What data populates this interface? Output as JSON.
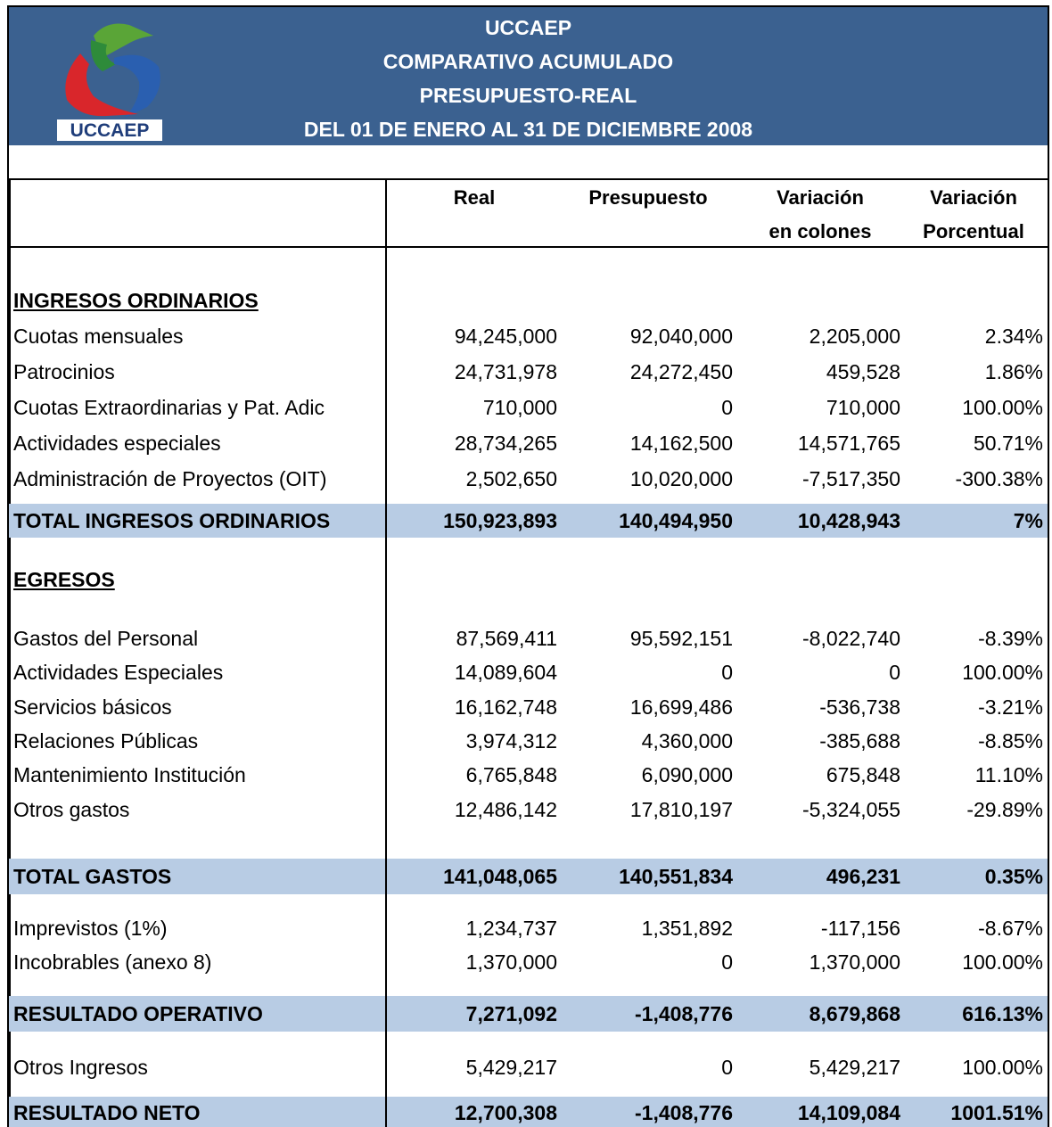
{
  "header": {
    "logo_text": "UCCAEP",
    "title_lines": [
      "UCCAEP",
      "COMPARATIVO ACUMULADO",
      "PRESUPUESTO-REAL",
      "DEL 01 DE ENERO AL 31 DE DICIEMBRE 2008"
    ]
  },
  "table": {
    "columns": [
      [
        "Real"
      ],
      [
        "Presupuesto"
      ],
      [
        "Variación",
        "en colones"
      ],
      [
        "Variación",
        "Porcentual"
      ]
    ],
    "rows": [
      {
        "kind": "section",
        "label": "INGRESOS ORDINARIOS"
      },
      {
        "kind": "item",
        "label": "Cuotas mensuales",
        "values": [
          "94,245,000",
          "92,040,000",
          "2,205,000",
          "2.34%"
        ]
      },
      {
        "kind": "item",
        "label": "Patrocinios",
        "values": [
          "24,731,978",
          "24,272,450",
          "459,528",
          "1.86%"
        ]
      },
      {
        "kind": "item",
        "label": "Cuotas Extraordinarias y Pat. Adic",
        "values": [
          "710,000",
          "0",
          "710,000",
          "100.00%"
        ]
      },
      {
        "kind": "item",
        "label": "Actividades especiales",
        "values": [
          "28,734,265",
          "14,162,500",
          "14,571,765",
          "50.71%"
        ]
      },
      {
        "kind": "item",
        "label": "Administración de Proyectos (OIT)",
        "values": [
          "2,502,650",
          "10,020,000",
          "-7,517,350",
          "-300.38%"
        ]
      },
      {
        "kind": "total",
        "label": "TOTAL INGRESOS ORDINARIOS",
        "values": [
          "150,923,893",
          "140,494,950",
          "10,428,943",
          "7%"
        ]
      },
      {
        "kind": "section",
        "label": "EGRESOS"
      },
      {
        "kind": "item",
        "label": "Gastos del Personal",
        "values": [
          "87,569,411",
          "95,592,151",
          "-8,022,740",
          "-8.39%"
        ]
      },
      {
        "kind": "item",
        "label": "Actividades Especiales",
        "values": [
          "14,089,604",
          "0",
          "0",
          "100.00%"
        ]
      },
      {
        "kind": "item",
        "label": "Servicios básicos",
        "values": [
          "16,162,748",
          "16,699,486",
          "-536,738",
          "-3.21%"
        ]
      },
      {
        "kind": "item",
        "label": "Relaciones Públicas",
        "values": [
          "3,974,312",
          "4,360,000",
          "-385,688",
          "-8.85%"
        ]
      },
      {
        "kind": "item",
        "label": "Mantenimiento Institución",
        "values": [
          "6,765,848",
          "6,090,000",
          "675,848",
          "11.10%"
        ]
      },
      {
        "kind": "item",
        "label": "Otros gastos",
        "values": [
          "12,486,142",
          "17,810,197",
          "-5,324,055",
          "-29.89%"
        ]
      },
      {
        "kind": "total",
        "label": "TOTAL GASTOS",
        "values": [
          "141,048,065",
          "140,551,834",
          "496,231",
          "0.35%"
        ]
      },
      {
        "kind": "item",
        "label": "Imprevistos (1%)",
        "values": [
          "1,234,737",
          "1,351,892",
          "-117,156",
          "-8.67%"
        ]
      },
      {
        "kind": "item",
        "label": "Incobrables (anexo 8)",
        "values": [
          "1,370,000",
          "0",
          "1,370,000",
          "100.00%"
        ]
      },
      {
        "kind": "total",
        "label": "RESULTADO OPERATIVO",
        "values": [
          "7,271,092",
          "-1,408,776",
          "8,679,868",
          "616.13%"
        ]
      },
      {
        "kind": "item",
        "label": "Otros Ingresos",
        "values": [
          "5,429,217",
          "0",
          "5,429,217",
          "100.00%"
        ]
      },
      {
        "kind": "total",
        "label": "RESULTADO NETO",
        "values": [
          "12,700,308",
          "-1,408,776",
          "14,109,084",
          "1001.51%"
        ]
      }
    ]
  }
}
